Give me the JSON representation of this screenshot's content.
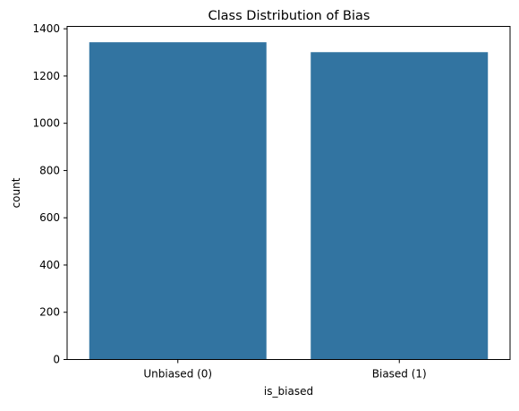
{
  "chart_data": {
    "type": "bar",
    "title": "Class Distribution of Bias",
    "xlabel": "is_biased",
    "ylabel": "count",
    "categories": [
      "Unbiased (0)",
      "Biased (1)"
    ],
    "values": [
      1343,
      1301
    ],
    "ylim": [
      0,
      1410
    ],
    "yticks": [
      0,
      200,
      400,
      600,
      800,
      1000,
      1200,
      1400
    ],
    "bar_color": "#3274a1",
    "grid": false,
    "legend": "none"
  }
}
